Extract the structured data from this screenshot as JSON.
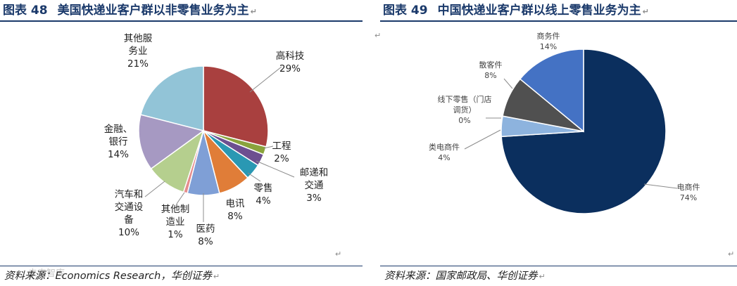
{
  "left": {
    "figure_no": "图表 48",
    "title": "美国快递业客户群以非零售业务为主",
    "source": "资料来源：Economics Research，华创证券"
  },
  "right": {
    "figure_no": "图表 49",
    "title": "中国快递业客户群以线上零售业务为主",
    "source": "资料来源：国家邮政局、华创证券"
  },
  "watermark": "未来智库",
  "chart_data": [
    {
      "type": "pie",
      "categories": [
        "高科技",
        "工程",
        "邮递和交通",
        "零售",
        "电讯",
        "医药",
        "其他制造业",
        "汽车和交通设备",
        "金融、银行",
        "其他服务业"
      ],
      "values": [
        29,
        2,
        3,
        4,
        8,
        8,
        1,
        10,
        14,
        21
      ],
      "colors": [
        "#a9403f",
        "#8aa33c",
        "#6d4f90",
        "#2a98b3",
        "#e07d38",
        "#7f9fd6",
        "#e58c8c",
        "#b5cf8e",
        "#a699c2",
        "#92c4d7"
      ],
      "labels": [
        {
          "lines": [
            "高科技",
            "29%"
          ]
        },
        {
          "lines": [
            "工程",
            "2%"
          ]
        },
        {
          "lines": [
            "邮递和",
            "交通",
            "3%"
          ]
        },
        {
          "lines": [
            "零售",
            "4%"
          ]
        },
        {
          "lines": [
            "电讯",
            "8%"
          ]
        },
        {
          "lines": [
            "医药",
            "8%"
          ]
        },
        {
          "lines": [
            "其他制",
            "造业",
            "1%"
          ]
        },
        {
          "lines": [
            "汽车和",
            "交通设",
            "备",
            "10%"
          ]
        },
        {
          "lines": [
            "金融、",
            "银行",
            "14%"
          ]
        },
        {
          "lines": [
            "其他服",
            "务业",
            "21%"
          ]
        }
      ]
    },
    {
      "type": "pie",
      "categories": [
        "电商件",
        "类电商件",
        "线下零售（门店调货）",
        "散客件",
        "商务件"
      ],
      "values": [
        74,
        4,
        0,
        8,
        14
      ],
      "colors": [
        "#0b2f5e",
        "#8db3de",
        "#c6d9f0",
        "#505050",
        "#4472c4"
      ],
      "labels": [
        {
          "lines": [
            "电商件",
            "74%"
          ]
        },
        {
          "lines": [
            "类电商件",
            "4%"
          ]
        },
        {
          "lines": [
            "线下零售（门店",
            "调货）",
            "0%"
          ]
        },
        {
          "lines": [
            "散客件",
            "8%"
          ]
        },
        {
          "lines": [
            "商务件",
            "14%"
          ]
        }
      ]
    }
  ]
}
